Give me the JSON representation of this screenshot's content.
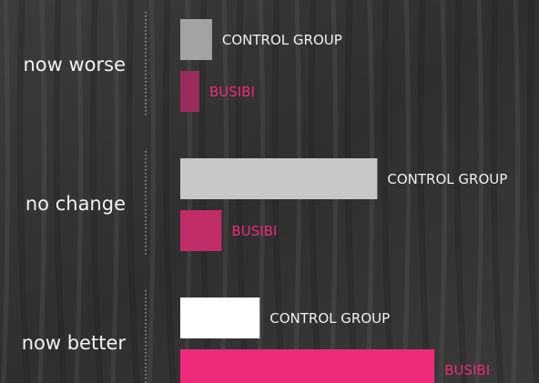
{
  "chart_data": {
    "type": "bar",
    "orientation": "horizontal",
    "categories": [
      "now worse",
      "no change",
      "now better"
    ],
    "series": [
      {
        "name": "CONTROL GROUP",
        "colors": [
          "#a3a3a3",
          "#c8c8c8",
          "#ffffff"
        ],
        "label_color": "#f0f0f0",
        "values": [
          10,
          62,
          25
        ]
      },
      {
        "name": "BUSIBI",
        "colors": [
          "#9a2c5c",
          "#c02d68",
          "#ee2a7b"
        ],
        "label_color": "#ee2a7b",
        "values": [
          6,
          13,
          80
        ]
      }
    ],
    "xlim": [
      0,
      100
    ]
  }
}
